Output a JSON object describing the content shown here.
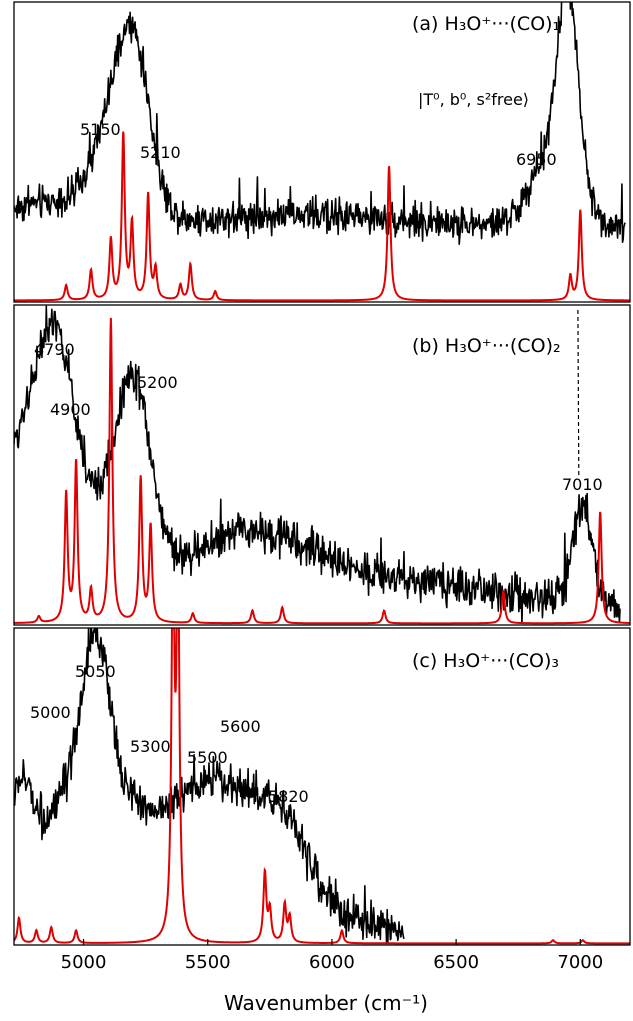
{
  "chart_data": {
    "type": "line",
    "xlabel": "Wavenumber (cm⁻¹)",
    "xlim": [
      4720,
      7200
    ],
    "xticks": [
      "5000",
      "5500",
      "6000",
      "6500",
      "7000"
    ],
    "colors": {
      "experiment": "#000000",
      "theory": "#e00000"
    },
    "panels": [
      {
        "label": "(a) H₃O⁺···(CO)₁",
        "state_label": "|T⁰, b⁰, s²free⟩",
        "experiment": {
          "x_range": [
            4720,
            7180
          ],
          "baseline": 0.25,
          "noise": 0.055,
          "bands": [
            {
              "center": 5150,
              "height": 0.4,
              "width": 90
            },
            {
              "center": 5210,
              "height": 0.3,
              "width": 60
            },
            {
              "center": 4850,
              "height": 0.08,
              "width": 180
            },
            {
              "center": 5850,
              "height": 0.04,
              "width": 400
            },
            {
              "center": 6950,
              "height": 0.6,
              "width": 40
            },
            {
              "center": 6900,
              "height": 0.25,
              "width": 90
            }
          ]
        },
        "theory": {
          "peaks": [
            {
              "x": 4930,
              "h": 0.05
            },
            {
              "x": 5030,
              "h": 0.1
            },
            {
              "x": 5110,
              "h": 0.2
            },
            {
              "x": 5160,
              "h": 0.55
            },
            {
              "x": 5195,
              "h": 0.25
            },
            {
              "x": 5260,
              "h": 0.35
            },
            {
              "x": 5290,
              "h": 0.1
            },
            {
              "x": 5430,
              "h": 0.12
            },
            {
              "x": 5390,
              "h": 0.05
            },
            {
              "x": 5530,
              "h": 0.03
            },
            {
              "x": 6230,
              "h": 0.45
            },
            {
              "x": 6960,
              "h": 0.08
            },
            {
              "x": 7000,
              "h": 0.3
            }
          ]
        },
        "annotations": [
          {
            "text": "5150",
            "x": 5150
          },
          {
            "text": "5210",
            "x": 5210
          },
          {
            "text": "6950",
            "x": 6950
          }
        ]
      },
      {
        "label": "(b) H₃O⁺···(CO)₂",
        "experiment": {
          "x_range": [
            4720,
            7160
          ],
          "baseline": 0.06,
          "noise": 0.06,
          "bands": [
            {
              "center": 4790,
              "height": 0.55,
              "width": 120
            },
            {
              "center": 4900,
              "height": 0.35,
              "width": 70
            },
            {
              "center": 5200,
              "height": 0.55,
              "width": 70
            },
            {
              "center": 5050,
              "height": 0.22,
              "width": 150
            },
            {
              "center": 5650,
              "height": 0.2,
              "width": 250
            },
            {
              "center": 6200,
              "height": 0.08,
              "width": 400
            },
            {
              "center": 7010,
              "height": 0.3,
              "width": 40
            }
          ]
        },
        "theory": {
          "peaks": [
            {
              "x": 4820,
              "h": 0.02
            },
            {
              "x": 4930,
              "h": 0.4
            },
            {
              "x": 4970,
              "h": 0.5
            },
            {
              "x": 5030,
              "h": 0.1
            },
            {
              "x": 5110,
              "h": 0.95
            },
            {
              "x": 5230,
              "h": 0.45
            },
            {
              "x": 5270,
              "h": 0.3
            },
            {
              "x": 5440,
              "h": 0.03
            },
            {
              "x": 5680,
              "h": 0.04
            },
            {
              "x": 5800,
              "h": 0.05
            },
            {
              "x": 6210,
              "h": 0.04
            },
            {
              "x": 6690,
              "h": 0.1
            },
            {
              "x": 7080,
              "h": 0.35
            }
          ]
        },
        "annotations": [
          {
            "text": "4790",
            "x": 4790
          },
          {
            "text": "4900",
            "x": 4900
          },
          {
            "text": "5200",
            "x": 5200
          },
          {
            "text": "7010",
            "x": 7010
          }
        ]
      },
      {
        "label": "(c) H₃O⁺···(CO)₃",
        "experiment": {
          "x_range": [
            4720,
            6290
          ],
          "baseline": 0.02,
          "noise": 0.06,
          "bands": [
            {
              "center": 4740,
              "height": 0.38,
              "width": 60
            },
            {
              "center": 5000,
              "height": 0.45,
              "width": 150
            },
            {
              "center": 5050,
              "height": 0.4,
              "width": 50
            },
            {
              "center": 5350,
              "height": 0.28,
              "width": 250
            },
            {
              "center": 5600,
              "height": 0.3,
              "width": 180
            },
            {
              "center": 5820,
              "height": 0.18,
              "width": 90
            },
            {
              "center": 6050,
              "height": 0.05,
              "width": 250
            }
          ]
        },
        "theory": {
          "peaks": [
            {
              "x": 4740,
              "h": 0.08
            },
            {
              "x": 4810,
              "h": 0.04
            },
            {
              "x": 4870,
              "h": 0.05
            },
            {
              "x": 4970,
              "h": 0.04
            },
            {
              "x": 5360,
              "h": 1.2
            },
            {
              "x": 5380,
              "h": 1.2
            },
            {
              "x": 5730,
              "h": 0.22
            },
            {
              "x": 5750,
              "h": 0.1
            },
            {
              "x": 5810,
              "h": 0.12
            },
            {
              "x": 5830,
              "h": 0.08
            },
            {
              "x": 6040,
              "h": 0.04
            },
            {
              "x": 6890,
              "h": 0.01
            },
            {
              "x": 7010,
              "h": 0.01
            }
          ]
        },
        "annotations": [
          {
            "text": "5000",
            "x": 5000
          },
          {
            "text": "5050",
            "x": 5050
          },
          {
            "text": "5300",
            "x": 5300
          },
          {
            "text": "5500",
            "x": 5500
          },
          {
            "text": "5600",
            "x": 5600
          },
          {
            "text": "5820",
            "x": 5820
          }
        ]
      }
    ]
  }
}
